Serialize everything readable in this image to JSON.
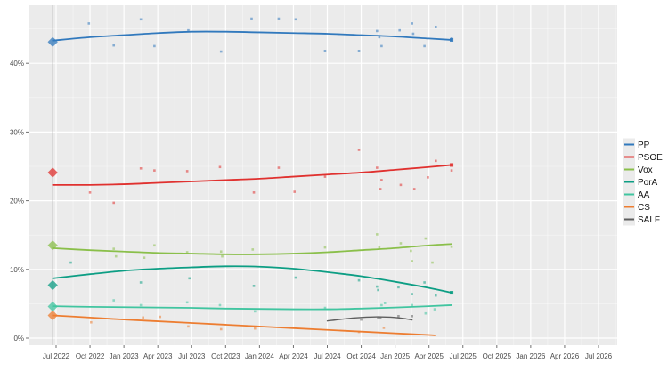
{
  "chart_data": {
    "type": "scatter",
    "title": "",
    "description": "Opinion polling: scatter of poll results with smoothed trend lines per party, election results shown as diamonds at the vertical election line",
    "panel_color": "#ebebeb",
    "gridline_color": "#ffffff",
    "election_line_color": "#b0b0b0",
    "axis_text_color": "#4a4a4a",
    "x_axis": {
      "tick_labels": [
        "Jul 2022",
        "Oct 2022",
        "Jan 2023",
        "Apr 2023",
        "Jul 2023",
        "Oct 2023",
        "Jan 2024",
        "Apr 2024",
        "Jul 2024",
        "Oct 2024",
        "Jan 2025",
        "Apr 2025",
        "Jul 2025",
        "Oct 2025",
        "Jan 2026",
        "Apr 2026",
        "Jul 2026"
      ],
      "tick_months": [
        0,
        3,
        6,
        9,
        12,
        15,
        18,
        21,
        24,
        27,
        30,
        33,
        36,
        39,
        42,
        45,
        48
      ]
    },
    "y_axis": {
      "tick_labels": [
        "0%",
        "10%",
        "20%",
        "30%",
        "40%"
      ],
      "tick_values": [
        0,
        10,
        20,
        30,
        40
      ],
      "minor_values": [
        5,
        15,
        25,
        35,
        45
      ]
    },
    "election_month": -0.3,
    "series": [
      {
        "name": "PP",
        "color": "#3179bd",
        "election_result": 43.1,
        "end_marker": true,
        "trend": [
          [
            -0.3,
            43.3
          ],
          [
            3,
            43.8
          ],
          [
            6,
            44.1
          ],
          [
            9,
            44.4
          ],
          [
            12,
            44.6
          ],
          [
            15,
            44.6
          ],
          [
            18,
            44.5
          ],
          [
            21,
            44.4
          ],
          [
            24,
            44.3
          ],
          [
            27,
            44.1
          ],
          [
            30,
            43.9
          ],
          [
            33,
            43.6
          ],
          [
            35,
            43.4
          ]
        ],
        "points": [
          [
            2.9,
            45.8
          ],
          [
            5.1,
            42.6
          ],
          [
            7.5,
            46.4
          ],
          [
            8.7,
            42.5
          ],
          [
            11.7,
            44.8
          ],
          [
            14.6,
            41.7
          ],
          [
            17.3,
            46.5
          ],
          [
            19.7,
            46.5
          ],
          [
            21.2,
            46.4
          ],
          [
            23.8,
            41.8
          ],
          [
            26.8,
            41.8
          ],
          [
            28.4,
            44.7
          ],
          [
            28.6,
            43.8
          ],
          [
            28.8,
            42.5
          ],
          [
            30.4,
            44.8
          ],
          [
            31.5,
            45.8
          ],
          [
            31.6,
            44.3
          ],
          [
            32.6,
            42.5
          ],
          [
            33.6,
            45.3
          ],
          [
            35,
            43.6
          ]
        ]
      },
      {
        "name": "PSOE",
        "color": "#e0312f",
        "election_result": 24.1,
        "end_marker": true,
        "trend": [
          [
            -0.3,
            22.3
          ],
          [
            3,
            22.3
          ],
          [
            6,
            22.4
          ],
          [
            9,
            22.6
          ],
          [
            12,
            22.8
          ],
          [
            15,
            23.0
          ],
          [
            18,
            23.2
          ],
          [
            21,
            23.5
          ],
          [
            24,
            23.8
          ],
          [
            27,
            24.1
          ],
          [
            30,
            24.5
          ],
          [
            33,
            24.9
          ],
          [
            35,
            25.2
          ]
        ],
        "points": [
          [
            3.0,
            21.2
          ],
          [
            5.1,
            19.7
          ],
          [
            7.5,
            24.7
          ],
          [
            8.7,
            24.4
          ],
          [
            11.6,
            24.3
          ],
          [
            14.5,
            24.9
          ],
          [
            17.5,
            21.2
          ],
          [
            19.7,
            24.8
          ],
          [
            21.1,
            21.3
          ],
          [
            23.8,
            23.5
          ],
          [
            26.8,
            27.4
          ],
          [
            28.4,
            24.8
          ],
          [
            28.7,
            21.7
          ],
          [
            28.8,
            23.0
          ],
          [
            30.5,
            22.3
          ],
          [
            31.7,
            21.7
          ],
          [
            32.9,
            23.4
          ],
          [
            33.6,
            25.8
          ],
          [
            35,
            24.4
          ]
        ]
      },
      {
        "name": "Vox",
        "color": "#8abf4a",
        "election_result": 13.5,
        "end_marker": false,
        "trend": [
          [
            -0.3,
            13.1
          ],
          [
            3,
            12.8
          ],
          [
            6,
            12.6
          ],
          [
            9,
            12.4
          ],
          [
            12,
            12.3
          ],
          [
            15,
            12.2
          ],
          [
            18,
            12.2
          ],
          [
            21,
            12.3
          ],
          [
            24,
            12.5
          ],
          [
            27,
            12.8
          ],
          [
            30,
            13.1
          ],
          [
            33,
            13.5
          ],
          [
            35,
            13.7
          ]
        ],
        "points": [
          [
            5.1,
            13.0
          ],
          [
            5.3,
            11.9
          ],
          [
            7.8,
            11.7
          ],
          [
            8.7,
            13.5
          ],
          [
            11.6,
            12.5
          ],
          [
            14.6,
            12.6
          ],
          [
            14.7,
            11.9
          ],
          [
            17.4,
            12.9
          ],
          [
            23.8,
            13.2
          ],
          [
            28.4,
            15.1
          ],
          [
            28.6,
            13.2
          ],
          [
            30.5,
            13.8
          ],
          [
            31.4,
            12.7
          ],
          [
            31.5,
            11.2
          ],
          [
            32.7,
            14.5
          ],
          [
            33.3,
            11.0
          ],
          [
            35,
            13.3
          ]
        ]
      },
      {
        "name": "PorA",
        "color": "#0d9e84",
        "election_result": 7.7,
        "end_marker": true,
        "trend": [
          [
            -0.3,
            8.7
          ],
          [
            3,
            9.3
          ],
          [
            6,
            9.8
          ],
          [
            9,
            10.1
          ],
          [
            12,
            10.3
          ],
          [
            15,
            10.45
          ],
          [
            18,
            10.4
          ],
          [
            21,
            10.1
          ],
          [
            24,
            9.6
          ],
          [
            27,
            9.0
          ],
          [
            30,
            8.2
          ],
          [
            33,
            7.3
          ],
          [
            35,
            6.6
          ]
        ],
        "points": [
          [
            1.3,
            11.0
          ],
          [
            7.5,
            8.1
          ],
          [
            11.8,
            8.7
          ],
          [
            17.5,
            7.6
          ],
          [
            21.2,
            8.8
          ],
          [
            26.8,
            8.4
          ],
          [
            28.4,
            7.5
          ],
          [
            28.5,
            7.0
          ],
          [
            30.3,
            7.4
          ],
          [
            31.5,
            6.4
          ],
          [
            32.6,
            8.1
          ],
          [
            33.6,
            6.2
          ]
        ]
      },
      {
        "name": "AA",
        "color": "#41c5a0",
        "election_result": 4.6,
        "end_marker": false,
        "trend": [
          [
            -0.3,
            4.65
          ],
          [
            3,
            4.55
          ],
          [
            6,
            4.5
          ],
          [
            9,
            4.45
          ],
          [
            12,
            4.4
          ],
          [
            15,
            4.3
          ],
          [
            18,
            4.25
          ],
          [
            21,
            4.2
          ],
          [
            24,
            4.2
          ],
          [
            27,
            4.3
          ],
          [
            30,
            4.45
          ],
          [
            33,
            4.65
          ],
          [
            35,
            4.8
          ]
        ],
        "points": [
          [
            5.1,
            5.5
          ],
          [
            7.5,
            4.8
          ],
          [
            11.6,
            5.2
          ],
          [
            14.5,
            4.8
          ],
          [
            17.6,
            3.9
          ],
          [
            23.8,
            4.4
          ],
          [
            28.8,
            4.8
          ],
          [
            29.1,
            5.1
          ],
          [
            31.5,
            4.8
          ],
          [
            32.7,
            3.6
          ],
          [
            33.5,
            4.2
          ]
        ]
      },
      {
        "name": "CS",
        "color": "#ed7d31",
        "election_result": 3.3,
        "end_marker": false,
        "trend": [
          [
            -0.3,
            3.3
          ],
          [
            3,
            3.0
          ],
          [
            6,
            2.7
          ],
          [
            9,
            2.45
          ],
          [
            12,
            2.2
          ],
          [
            15,
            1.95
          ],
          [
            18,
            1.7
          ],
          [
            21,
            1.45
          ],
          [
            24,
            1.2
          ],
          [
            27,
            0.95
          ],
          [
            30,
            0.7
          ],
          [
            33,
            0.45
          ],
          [
            33.5,
            0.4
          ]
        ],
        "points": [
          [
            3.1,
            2.3
          ],
          [
            7.7,
            3.0
          ],
          [
            9.2,
            3.1
          ],
          [
            11.7,
            1.7
          ],
          [
            14.6,
            1.3
          ],
          [
            17.6,
            1.4
          ],
          [
            26.8,
            0.9
          ],
          [
            29.0,
            1.5
          ]
        ]
      },
      {
        "name": "SALF",
        "color": "#5e5e5e",
        "election_result": null,
        "end_marker": false,
        "trend": [
          [
            24,
            2.5
          ],
          [
            25.5,
            2.8
          ],
          [
            27,
            3.0
          ],
          [
            28.5,
            3.1
          ],
          [
            30,
            3.0
          ],
          [
            31,
            2.8
          ],
          [
            31.5,
            2.65
          ]
        ],
        "points": [
          [
            27,
            2.7
          ],
          [
            28.5,
            3.0
          ],
          [
            28.7,
            2.9
          ],
          [
            30.3,
            3.2
          ],
          [
            31.5,
            3.2
          ]
        ]
      }
    ],
    "legend": {
      "position": "right",
      "items": [
        "PP",
        "PSOE",
        "Vox",
        "PorA",
        "AA",
        "CS",
        "SALF"
      ]
    }
  }
}
